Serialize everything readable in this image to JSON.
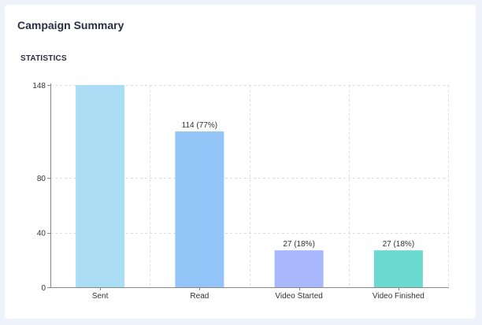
{
  "card": {
    "title": "Campaign Summary",
    "section_label": "STATISTICS"
  },
  "chart_data": {
    "type": "bar",
    "categories": [
      "Sent",
      "Read",
      "Video Started",
      "Video Finished"
    ],
    "values": [
      148,
      114,
      27,
      27
    ],
    "data_labels": [
      "",
      "114 (77%)",
      "27 (18%)",
      "27 (18%)"
    ],
    "colors": [
      "#abdef5",
      "#93c5f8",
      "#a9b7fd",
      "#6cdad0"
    ],
    "yticks": [
      0,
      40,
      80,
      148
    ],
    "ylim": [
      0,
      148
    ],
    "grid": true,
    "legend": "none"
  }
}
